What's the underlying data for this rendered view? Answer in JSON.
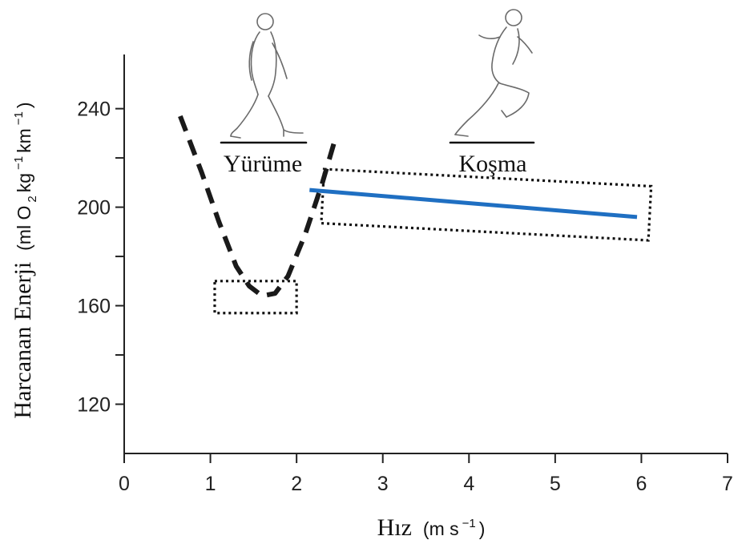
{
  "chart_data": {
    "type": "line",
    "title": "",
    "xlabel": {
      "main": "Hız",
      "unit": "(m s",
      "unit_exp": "−1",
      "unit_close": ")"
    },
    "ylabel": {
      "main": "Harcanan Enerji",
      "unit_open": "(ml O",
      "unit_sub": "2",
      "unit_mid": " kg",
      "unit_exp1": "−1",
      "unit_mid2": " km",
      "unit_exp2": "−1",
      "unit_close": ")"
    },
    "xlim": [
      0,
      7
    ],
    "ylim": [
      100,
      262
    ],
    "x_ticks": [
      0,
      1,
      2,
      3,
      4,
      5,
      6,
      7
    ],
    "x_tick_labels": [
      "0",
      "1",
      "2",
      "3",
      "4",
      "5",
      "6",
      "7"
    ],
    "y_ticks": [
      120,
      140,
      160,
      180,
      200,
      220,
      240
    ],
    "y_tick_labels": [
      {
        "value": 240,
        "label": "240"
      },
      {
        "value": 200,
        "label": "200"
      },
      {
        "value": 160,
        "label": "160"
      },
      {
        "value": 120,
        "label": "120"
      }
    ],
    "series": [
      {
        "name": "Yürüme",
        "style": "dashed",
        "color": "#1a1a1a",
        "x": [
          0.65,
          0.9,
          1.1,
          1.3,
          1.45,
          1.6,
          1.75,
          1.9,
          2.1,
          2.3,
          2.45
        ],
        "y": [
          237,
          214,
          194,
          176,
          168,
          164,
          165,
          172,
          189,
          210,
          228
        ]
      },
      {
        "name": "Koşma",
        "style": "solid",
        "color": "#1f6fc2",
        "x": [
          2.15,
          5.95
        ],
        "y": [
          207,
          196
        ]
      }
    ],
    "annotations": [
      {
        "label": "Yürüme",
        "figure": "walking",
        "x": 1.6,
        "y": 222
      },
      {
        "label": "Koşma",
        "figure": "running",
        "x": 4.25,
        "y": 222
      }
    ],
    "highlight_boxes": [
      {
        "name": "walking-minimum",
        "x_range": [
          1.05,
          2.0
        ],
        "y_range": [
          157,
          170
        ]
      },
      {
        "name": "running-line",
        "x_range": [
          2.3,
          6.1
        ],
        "y_range": [
          190,
          212
        ]
      }
    ],
    "grid": false
  }
}
